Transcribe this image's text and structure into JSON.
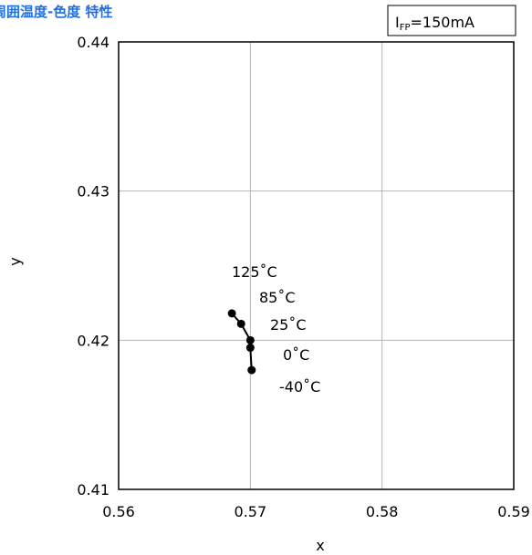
{
  "chart_data": {
    "type": "scatter",
    "title": "周囲温度-色度 特性",
    "condition": {
      "symbol": "I",
      "subscript": "FP",
      "value": "=150mA"
    },
    "xlabel": "x",
    "ylabel": "y",
    "xlim": [
      0.56,
      0.59
    ],
    "ylim": [
      0.41,
      0.44
    ],
    "xticks": [
      "0.56",
      "0.57",
      "0.58",
      "0.59"
    ],
    "yticks": [
      "0.41",
      "0.42",
      "0.43",
      "0.44"
    ],
    "grid": true,
    "series": [
      {
        "points": [
          {
            "label": "125˚C",
            "x": 0.5686,
            "y": 0.4218
          },
          {
            "label": "85˚C",
            "x": 0.5693,
            "y": 0.4211
          },
          {
            "label": "25˚C",
            "x": 0.57,
            "y": 0.42
          },
          {
            "label": "0˚C",
            "x": 0.57,
            "y": 0.4195
          },
          {
            "label": "-40˚C",
            "x": 0.5701,
            "y": 0.418
          }
        ]
      }
    ]
  }
}
